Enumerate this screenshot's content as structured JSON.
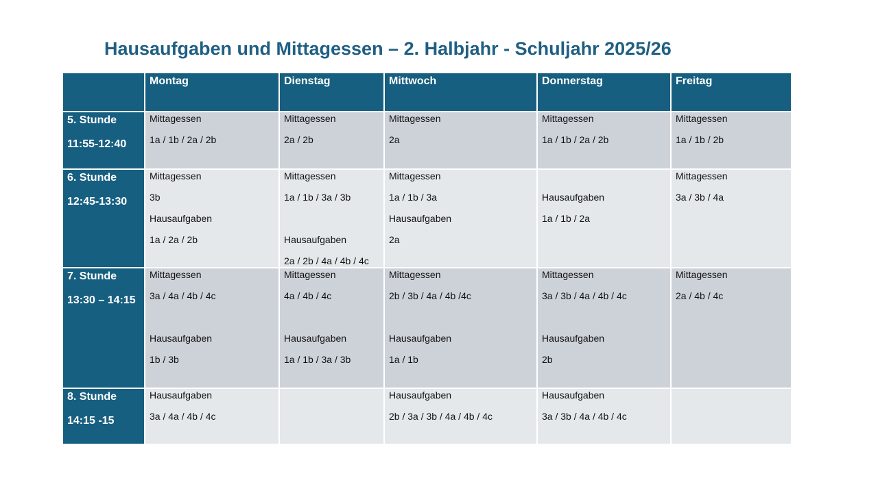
{
  "title": "Hausaufgaben und Mittagessen – 2. Halbjahr - Schuljahr 2025/26",
  "table": {
    "columns": [
      "Montag",
      "Dienstag",
      "Mittwoch",
      "Donnerstag",
      "Freitag"
    ],
    "rows": [
      {
        "label": [
          "5. Stunde",
          "11:55-12:40"
        ],
        "cells": [
          [
            "Mittagessen",
            "1a / 1b  / 2a / 2b"
          ],
          [
            "Mittagessen",
            "2a / 2b"
          ],
          [
            "Mittagessen",
            "2a"
          ],
          [
            "Mittagessen",
            "1a / 1b / 2a / 2b"
          ],
          [
            "Mittagessen",
            "1a / 1b / 2b"
          ]
        ]
      },
      {
        "label": [
          "6. Stunde",
          "12:45-13:30"
        ],
        "cells": [
          [
            "Mittagessen",
            "3b",
            "Hausaufgaben",
            "1a / 2a / 2b"
          ],
          [
            "Mittagessen",
            "1a / 1b / 3a / 3b",
            null,
            "Hausaufgaben",
            "2a / 2b / 4a / 4b / 4c"
          ],
          [
            "Mittagessen",
            "1a / 1b / 3a",
            "Hausaufgaben",
            "2a"
          ],
          [
            null,
            "Hausaufgaben",
            "1a / 1b / 2a"
          ],
          [
            "Mittagessen",
            "3a / 3b / 4a"
          ]
        ]
      },
      {
        "label": [
          "7. Stunde",
          "13:30 – 14:15"
        ],
        "cells": [
          [
            "Mittagessen",
            "3a / 4a / 4b / 4c",
            null,
            "Hausaufgaben",
            "1b / 3b"
          ],
          [
            "Mittagessen",
            "4a / 4b / 4c",
            null,
            "Hausaufgaben",
            "1a / 1b /  3a / 3b"
          ],
          [
            "Mittagessen",
            "2b /  3b / 4a / 4b /4c",
            null,
            "Hausaufgaben",
            "1a / 1b"
          ],
          [
            "Mittagessen",
            "3a / 3b / 4a / 4b / 4c",
            null,
            "Hausaufgaben",
            "2b"
          ],
          [
            "Mittagessen",
            "2a / 4b / 4c"
          ]
        ]
      },
      {
        "label": [
          "8. Stunde",
          "14:15 -15"
        ],
        "cells": [
          [
            "Hausaufgaben",
            "3a / 4a / 4b / 4c"
          ],
          [],
          [
            "Hausaufgaben",
            "2b / 3a / 3b / 4a / 4b / 4c"
          ],
          [
            "Hausaufgaben",
            "3a / 3b / 4a / 4b / 4c"
          ],
          []
        ]
      }
    ]
  }
}
